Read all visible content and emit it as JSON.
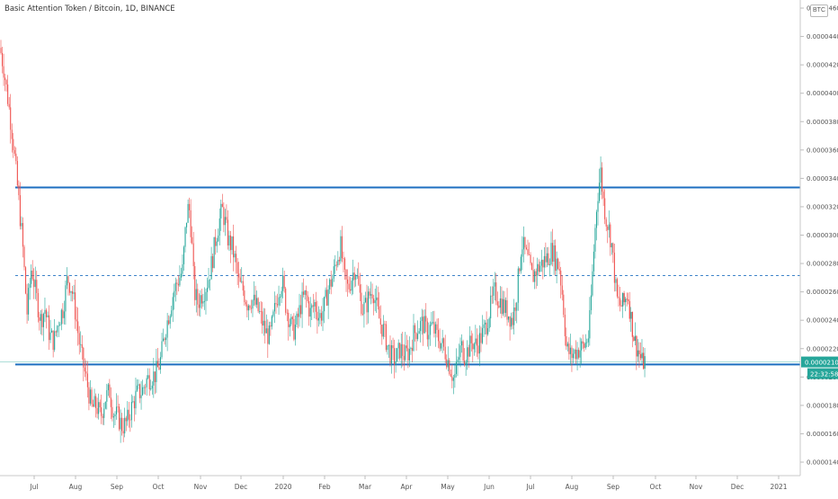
{
  "header": {
    "symbol_title": "Basic Attention Token / Bitcoin, 1D, BINANCE",
    "currency_button": "BTC"
  },
  "colors": {
    "up": "#26a69a",
    "down": "#ef5350",
    "level_line": "#1e6fc0",
    "price_badge": "#26a69a",
    "axis_text": "#555555"
  },
  "price_badge": {
    "price": "0.00002106",
    "countdown": "22:32:58"
  },
  "chart_data": {
    "type": "candlestick",
    "title": "Basic Attention Token / Bitcoin, 1D, BINANCE",
    "xlabel": "",
    "ylabel": "",
    "ylim": [
      1.32e-05,
      4.64e-05
    ],
    "x_tick_labels": [
      "Jul",
      "Aug",
      "Sep",
      "Oct",
      "Nov",
      "Dec",
      "2020",
      "Feb",
      "Mar",
      "Apr",
      "May",
      "Jun",
      "Jul",
      "Aug",
      "Sep",
      "Oct",
      "Nov",
      "Dec",
      "2021"
    ],
    "y_tick_labels": [
      "0.00004600",
      "0.00004400",
      "0.00004200",
      "0.00004000",
      "0.00003800",
      "0.00003600",
      "0.00003400",
      "0.00003200",
      "0.00003000",
      "0.00002800",
      "0.00002600",
      "0.00002400",
      "0.00002200",
      "0.00002000",
      "0.00001800",
      "0.00001600",
      "0.00001400"
    ],
    "y_tick_values": [
      4.6e-05,
      4.4e-05,
      4.2e-05,
      4e-05,
      3.8e-05,
      3.6e-05,
      3.4e-05,
      3.2e-05,
      3e-05,
      2.8e-05,
      2.6e-05,
      2.4e-05,
      2.2e-05,
      2e-05,
      1.8e-05,
      1.6e-05,
      1.4e-05
    ],
    "horizontal_levels": [
      {
        "value": 3.336e-05,
        "style": "solid"
      },
      {
        "value": 2.715e-05,
        "style": "dashed"
      },
      {
        "value": 2.088e-05,
        "style": "solid"
      }
    ],
    "last_price": 2.106e-05,
    "grid": false,
    "price_path": [
      [
        0,
        4.32e-05
      ],
      [
        4,
        4.18e-05
      ],
      [
        9,
        3.95e-05
      ],
      [
        14,
        3.7e-05
      ],
      [
        20,
        3.3e-05
      ],
      [
        25,
        2.95e-05
      ],
      [
        30,
        2.45e-05
      ],
      [
        35,
        2.78e-05
      ],
      [
        40,
        2.58e-05
      ],
      [
        45,
        2.4e-05
      ],
      [
        50,
        2.48e-05
      ],
      [
        55,
        2.3e-05
      ],
      [
        60,
        2.25e-05
      ],
      [
        65,
        2.4e-05
      ],
      [
        70,
        2.48e-05
      ],
      [
        75,
        2.7e-05
      ],
      [
        80,
        2.62e-05
      ],
      [
        84,
        2.45e-05
      ],
      [
        88,
        2.25e-05
      ],
      [
        92,
        2.1e-05
      ],
      [
        97,
        1.95e-05
      ],
      [
        102,
        1.78e-05
      ],
      [
        107,
        1.8e-05
      ],
      [
        112,
        1.72e-05
      ],
      [
        117,
        1.85e-05
      ],
      [
        122,
        1.9e-05
      ],
      [
        126,
        1.75e-05
      ],
      [
        131,
        1.72e-05
      ],
      [
        136,
        1.65e-05
      ],
      [
        141,
        1.68e-05
      ],
      [
        146,
        1.78e-05
      ],
      [
        152,
        1.88e-05
      ],
      [
        158,
        1.9e-05
      ],
      [
        163,
        1.98e-05
      ],
      [
        168,
        2e-05
      ],
      [
        173,
        2.02e-05
      ],
      [
        178,
        2.1e-05
      ],
      [
        183,
        2.3e-05
      ],
      [
        188,
        2.45e-05
      ],
      [
        193,
        2.6e-05
      ],
      [
        198,
        2.68e-05
      ],
      [
        203,
        2.75e-05
      ],
      [
        207,
        3.1e-05
      ],
      [
        210,
        3.22e-05
      ],
      [
        213,
        3e-05
      ],
      [
        216,
        2.6e-05
      ],
      [
        220,
        2.52e-05
      ],
      [
        224,
        2.58e-05
      ],
      [
        228,
        2.62e-05
      ],
      [
        232,
        2.7e-05
      ],
      [
        236,
        2.82e-05
      ],
      [
        240,
        2.98e-05
      ],
      [
        244,
        3.1e-05
      ],
      [
        247,
        3.18e-05
      ],
      [
        250,
        3.1e-05
      ],
      [
        254,
        2.96e-05
      ],
      [
        258,
        2.92e-05
      ],
      [
        262,
        2.8e-05
      ],
      [
        266,
        2.65e-05
      ],
      [
        270,
        2.62e-05
      ],
      [
        275,
        2.52e-05
      ],
      [
        280,
        2.55e-05
      ],
      [
        285,
        2.5e-05
      ],
      [
        290,
        2.42e-05
      ],
      [
        295,
        2.32e-05
      ],
      [
        300,
        2.28e-05
      ],
      [
        305,
        2.45e-05
      ],
      [
        310,
        2.62e-05
      ],
      [
        314,
        2.68e-05
      ],
      [
        318,
        2.5e-05
      ],
      [
        322,
        2.4e-05
      ],
      [
        326,
        2.32e-05
      ],
      [
        330,
        2.38e-05
      ],
      [
        335,
        2.52e-05
      ],
      [
        340,
        2.58e-05
      ],
      [
        345,
        2.45e-05
      ],
      [
        350,
        2.52e-05
      ],
      [
        355,
        2.42e-05
      ],
      [
        360,
        2.48e-05
      ],
      [
        365,
        2.62e-05
      ],
      [
        370,
        2.7e-05
      ],
      [
        375,
        2.85e-05
      ],
      [
        379,
        2.92e-05
      ],
      [
        383,
        2.7e-05
      ],
      [
        387,
        2.62e-05
      ],
      [
        391,
        2.7e-05
      ],
      [
        395,
        2.78e-05
      ],
      [
        399,
        2.62e-05
      ],
      [
        403,
        2.48e-05
      ],
      [
        407,
        2.5e-05
      ],
      [
        411,
        2.58e-05
      ],
      [
        415,
        2.62e-05
      ],
      [
        419,
        2.48e-05
      ],
      [
        423,
        2.38e-05
      ],
      [
        427,
        2.32e-05
      ],
      [
        431,
        2.22e-05
      ],
      [
        435,
        2.15e-05
      ],
      [
        440,
        2.12e-05
      ],
      [
        445,
        2.2e-05
      ],
      [
        450,
        2.15e-05
      ],
      [
        455,
        2.18e-05
      ],
      [
        460,
        2.3e-05
      ],
      [
        465,
        2.35e-05
      ],
      [
        470,
        2.38e-05
      ],
      [
        475,
        2.32e-05
      ],
      [
        480,
        2.36e-05
      ],
      [
        485,
        2.3e-05
      ],
      [
        490,
        2.25e-05
      ],
      [
        495,
        2.18e-05
      ],
      [
        500,
        2.08e-05
      ],
      [
        505,
        1.98e-05
      ],
      [
        509,
        2.1e-05
      ],
      [
        513,
        2.22e-05
      ],
      [
        517,
        2.15e-05
      ],
      [
        521,
        2.2e-05
      ],
      [
        525,
        2.25e-05
      ],
      [
        530,
        2.22e-05
      ],
      [
        535,
        2.28e-05
      ],
      [
        540,
        2.35e-05
      ],
      [
        545,
        2.48e-05
      ],
      [
        550,
        2.6e-05
      ],
      [
        555,
        2.55e-05
      ],
      [
        560,
        2.5e-05
      ],
      [
        565,
        2.45e-05
      ],
      [
        570,
        2.4e-05
      ],
      [
        575,
        2.6e-05
      ],
      [
        580,
        2.95e-05
      ],
      [
        584,
        2.88e-05
      ],
      [
        588,
        2.8e-05
      ],
      [
        592,
        2.7e-05
      ],
      [
        596,
        2.75e-05
      ],
      [
        600,
        2.78e-05
      ],
      [
        605,
        2.82e-05
      ],
      [
        610,
        2.85e-05
      ],
      [
        614,
        2.9e-05
      ],
      [
        618,
        2.82e-05
      ],
      [
        622,
        2.78e-05
      ],
      [
        626,
        2.55e-05
      ],
      [
        630,
        2.2e-05
      ],
      [
        635,
        2.15e-05
      ],
      [
        640,
        2.18e-05
      ],
      [
        645,
        2.2e-05
      ],
      [
        650,
        2.22e-05
      ],
      [
        655,
        2.3e-05
      ],
      [
        660,
        2.85e-05
      ],
      [
        664,
        3.25e-05
      ],
      [
        668,
        3.45e-05
      ],
      [
        671,
        3.25e-05
      ],
      [
        674,
        3.12e-05
      ],
      [
        677,
        3.05e-05
      ],
      [
        680,
        2.95e-05
      ],
      [
        683,
        2.75e-05
      ],
      [
        686,
        2.55e-05
      ],
      [
        690,
        2.5e-05
      ],
      [
        694,
        2.52e-05
      ],
      [
        698,
        2.6e-05
      ],
      [
        702,
        2.4e-05
      ],
      [
        706,
        2.25e-05
      ],
      [
        710,
        2.18e-05
      ],
      [
        714,
        2.1e-05
      ],
      [
        718,
        2.12e-05
      ]
    ]
  }
}
